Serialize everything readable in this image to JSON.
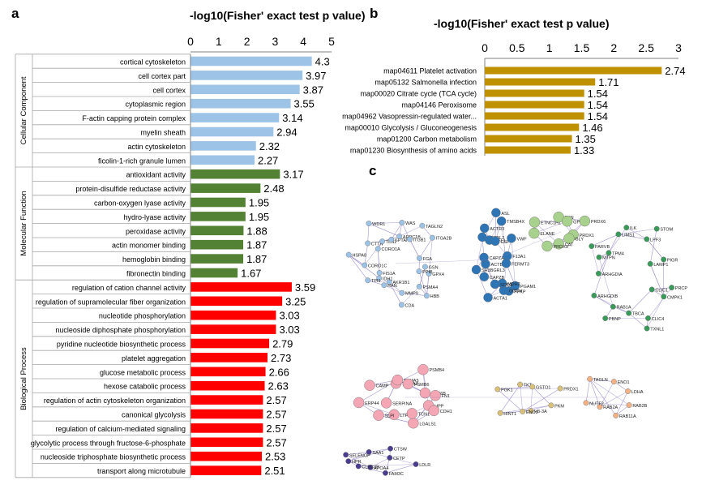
{
  "panels": {
    "a": {
      "letter": "a",
      "axis_title": "-log10(Fisher' exact test p value)"
    },
    "b": {
      "letter": "b",
      "axis_title": "-log10(Fisher' exact test p value)"
    },
    "c": {
      "letter": "c"
    }
  },
  "chart_data": [
    {
      "type": "bar",
      "orientation": "horizontal",
      "panel": "a",
      "title": "-log10(Fisher' exact test p value)",
      "xlim": [
        0,
        5
      ],
      "ticks": [
        0,
        1,
        2,
        3,
        4,
        5
      ],
      "groups": [
        {
          "name": "Cellular Component",
          "color": "#9dc3e6",
          "categories": [
            "cortical cytoskeleton",
            "cell cortex part",
            "cell cortex",
            "cytoplasmic region",
            "F-actin capping protein complex",
            "myelin sheath",
            "actin cytoskeleton",
            "ficolin-1-rich granule lumen"
          ],
          "values": [
            4.3,
            3.97,
            3.87,
            3.55,
            3.14,
            2.94,
            2.32,
            2.27
          ]
        },
        {
          "name": "Molecular Function",
          "color": "#548235",
          "categories": [
            "antioxidant activity",
            "protein-disulfide reductase activity",
            "carbon-oxygen lyase activity",
            "hydro-lyase activity",
            "peroxidase activity",
            "actin monomer binding",
            "hemoglobin binding",
            "fibronectin binding"
          ],
          "values": [
            3.17,
            2.48,
            1.95,
            1.95,
            1.88,
            1.87,
            1.87,
            1.67
          ]
        },
        {
          "name": "Biological Process",
          "color": "#ff0000",
          "categories": [
            "regulation of cation channel activity",
            "regulation of supramolecular fiber organization",
            "nucleotide phosphorylation",
            "nucleoside diphosphate phosphorylation",
            "pyridine nucleotide biosynthetic process",
            "platelet aggregation",
            "glucose metabolic process",
            "hexose catabolic process",
            "regulation of actin cytoskeleton organization",
            "canonical glycolysis",
            "regulation of calcium-mediated signaling",
            "glycolytic process through fructose-6-phosphate",
            "nucleoside triphosphate biosynthetic process",
            "transport along microtubule"
          ],
          "values": [
            3.59,
            3.25,
            3.03,
            3.03,
            2.79,
            2.73,
            2.66,
            2.63,
            2.57,
            2.57,
            2.57,
            2.57,
            2.53,
            2.51
          ]
        }
      ]
    },
    {
      "type": "bar",
      "orientation": "horizontal",
      "panel": "b",
      "title": "-log10(Fisher' exact test p value)",
      "xlim": [
        0,
        3
      ],
      "ticks": [
        0,
        0.5,
        1,
        1.5,
        2,
        2.5,
        3
      ],
      "color": "#bf9000",
      "categories": [
        "map04611 Platelet activation",
        "map05132 Salmonella infection",
        "map00020 Citrate cycle (TCA cycle)",
        "map04146 Peroxisome",
        "map04962 Vasopressin-regulated water...",
        "map00010 Glycolysis / Gluconeogenesis",
        "map01200 Carbon metabolism",
        "map01230 Biosynthesis of amino acids"
      ],
      "values": [
        2.74,
        1.71,
        1.54,
        1.54,
        1.54,
        1.46,
        1.35,
        1.33
      ]
    }
  ],
  "network": {
    "clusters": [
      {
        "id": "c1",
        "color": "#9dc3e6",
        "nodes": [
          "GPX4",
          "PPIB",
          "PSMA4",
          "HBB",
          "MMP9",
          "CDA",
          "AKR1B1",
          "RAN",
          "IDH1",
          "TPI1",
          "FIS1A",
          "HSPA8",
          "CORO1C",
          "CORO1A",
          "CTTN",
          "TLN1",
          "WDR1",
          "SPTAN1",
          "ARPC1B",
          "WAS",
          "ITGB1",
          "TAGLN2",
          "ITGA2B",
          "FGA",
          "GSN"
        ]
      },
      {
        "id": "c2",
        "color": "#2e75b6",
        "nodes": [
          "PGAM1",
          "PFKP",
          "OGDH",
          "MDH2",
          "SOD2",
          "ACTA1",
          "CAPZB",
          "ACTB",
          "SH3BGRL3",
          "CAPZA2",
          "ACTBL2",
          "ACTR3",
          "CFL1",
          "ASL",
          "CSF",
          "TMSB4X",
          "VWF",
          "F13A1",
          "FERMT3"
        ]
      },
      {
        "id": "c3",
        "color": "#a9d18e",
        "nodes": [
          "PRDX1",
          "GLY",
          "CAT",
          "PRDX3",
          "ELANE",
          "ETNC1H1",
          "TXN",
          "GPX1",
          "PRDX6"
        ]
      },
      {
        "id": "c4",
        "color": "#3a9a5a",
        "nodes": [
          "CMPK1",
          "CLIC1",
          "CLIC4",
          "TXNL1",
          "TBCA",
          "PBNP",
          "RAB1A",
          "ARHGDIB",
          "ARHGDIA",
          "MTPN",
          "TPM4",
          "PARVB",
          "LIMS1",
          "ILK",
          "LPF3",
          "STOM",
          "LAMP1",
          "PIGR",
          "PRCP"
        ]
      },
      {
        "id": "c5",
        "color": "#f4a6b5",
        "nodes": [
          "HPP",
          "CDH1",
          "LGALS1",
          "TCN1",
          "LTF",
          "SLPI",
          "SERPINA",
          "ERP44",
          "CAMP",
          "YWHAZ",
          "PSMA5",
          "PSMB6",
          "PSMB4",
          "RPS6B",
          "FN1"
        ]
      },
      {
        "id": "c6",
        "color": "#d9c17a",
        "nodes": [
          "PKM",
          "H3-3A",
          "ENO2",
          "HINT1",
          "PGK1",
          "TKT",
          "GSTO1",
          "PRDX1"
        ]
      },
      {
        "id": "c7",
        "color": "#f4b183",
        "nodes": [
          "RAB2B",
          "RAB11A",
          "RAB2A",
          "NUTF2",
          "TAGLN",
          "ENO1",
          "LDHA"
        ]
      },
      {
        "id": "c8",
        "color": "#4a3d8f",
        "nodes": [
          "LDLR",
          "FAM3C",
          "APOA4",
          "CLEC3B",
          "HPR",
          "SELENOP",
          "SAA1",
          "CTSW",
          "CETP"
        ]
      }
    ]
  }
}
